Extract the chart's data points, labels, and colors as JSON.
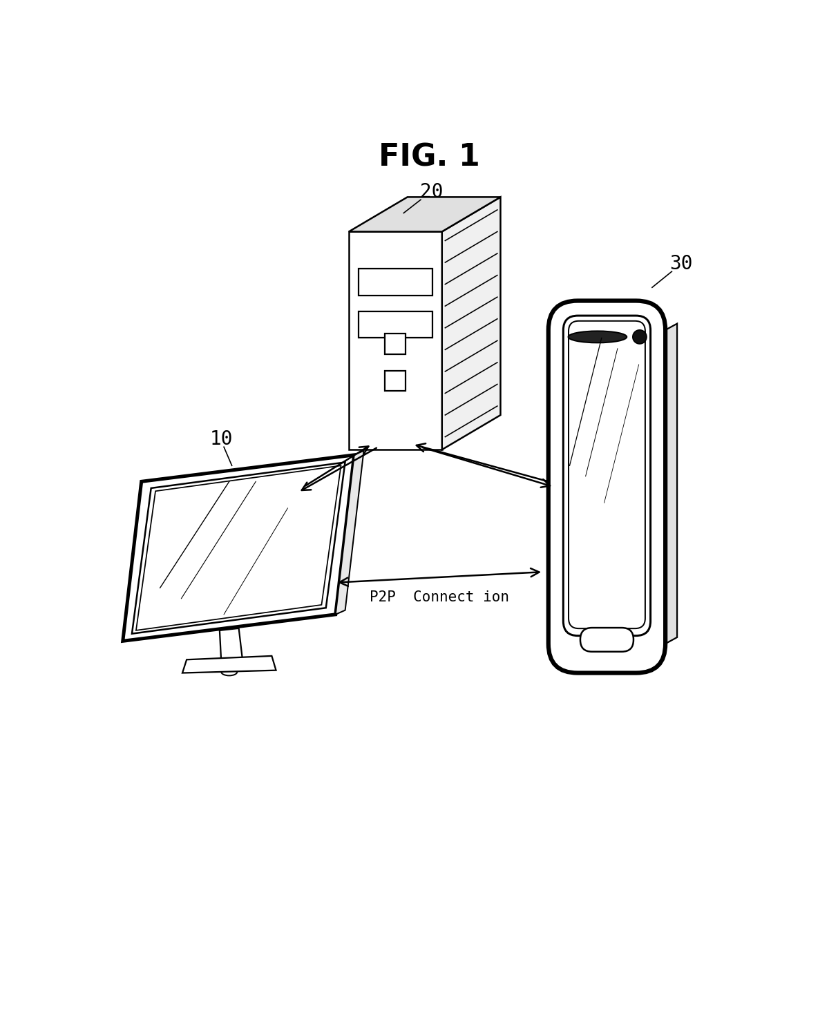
{
  "title": "FIG. 1",
  "title_fontsize": 32,
  "title_fontweight": "bold",
  "background_color": "#ffffff",
  "label_10": "10",
  "label_20": "20",
  "label_30": "30",
  "p2p_label": "P2P  Connect ion",
  "label_fontsize": 20,
  "lw": 1.8
}
